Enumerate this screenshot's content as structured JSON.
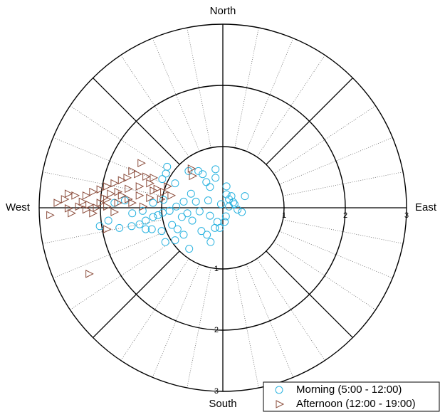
{
  "chart_data": {
    "type": "scatter",
    "coordinates": "polar",
    "compass": {
      "north": "North",
      "east": "East",
      "south": "South",
      "west": "West"
    },
    "rlim": [
      0,
      3
    ],
    "rticks": [
      1,
      2,
      3
    ],
    "legend": "bottom-right",
    "series": [
      {
        "name": "Morning (5:00 - 12:00)",
        "marker": "circle",
        "color": "#2bb3e0",
        "x": [
          -0.91,
          -0.93,
          -0.99,
          -0.78,
          -0.56,
          -0.4,
          -0.33,
          -0.12,
          -0.12,
          -0.27,
          -0.21,
          0.06,
          0.06,
          0.14,
          0.36,
          0.17,
          0.1,
          0.24,
          0.31,
          0.05,
          0.03,
          -0.09,
          -0.21,
          -0.38,
          -0.24,
          -0.44,
          -0.52,
          -0.64,
          -0.76,
          -0.87,
          -0.98,
          -1.06,
          -1.14,
          -1.26,
          -1.36,
          -1.49,
          -1.69,
          -1.87,
          -2.01,
          -1.77,
          -1.6,
          -1.48,
          -1.31,
          -1.14,
          -0.97,
          -0.83,
          -0.74,
          -0.64,
          -0.55,
          -0.78,
          -0.94,
          -1.0,
          -1.16,
          -1.26,
          -0.5,
          -0.35,
          -0.2,
          -0.26,
          -0.58,
          -0.67,
          -0.13,
          -0.05,
          0.1,
          0.19,
          -0.03
        ],
        "y": [
          0.67,
          0.56,
          0.47,
          0.4,
          0.6,
          0.6,
          0.55,
          0.63,
          0.49,
          0.42,
          0.34,
          0.35,
          0.22,
          0.19,
          0.19,
          0.09,
          0.02,
          -0.03,
          -0.07,
          -0.14,
          -0.23,
          -0.23,
          -0.13,
          -0.06,
          0.12,
          0.1,
          0.23,
          0.1,
          0.02,
          -0.05,
          -0.08,
          -0.12,
          -0.15,
          -0.21,
          -0.27,
          -0.3,
          -0.33,
          -0.21,
          -0.3,
          0.08,
          0.12,
          -0.09,
          -0.05,
          0.08,
          0.13,
          -0.28,
          -0.35,
          -0.44,
          -0.67,
          -0.53,
          -0.56,
          -0.38,
          -0.35,
          -0.35,
          -0.21,
          -0.38,
          -0.56,
          -0.44,
          -0.09,
          -0.15,
          -0.33,
          -0.33,
          0.14,
          0.06,
          0.06
        ]
      },
      {
        "name": "Afternoon (12:00 - 19:00)",
        "marker": "triangle",
        "color": "#8a4b3a",
        "x": [
          -0.52,
          -0.5,
          -1.34,
          -1.4,
          -1.49,
          -1.57,
          -1.66,
          -1.78,
          -1.9,
          -2.01,
          -2.13,
          -2.24,
          -2.42,
          -2.59,
          -2.71,
          -2.53,
          -2.36,
          -2.19,
          -2.01,
          -1.9,
          -1.72,
          -1.55,
          -1.37,
          -1.2,
          -1.08,
          -0.97,
          -0.85,
          -1.02,
          -1.2,
          -1.37,
          -1.55,
          -1.72,
          -1.9,
          -2.07,
          -2.24,
          -2.48,
          -2.83,
          -1.9,
          -2.19,
          -1.26,
          -1.14,
          -1.31,
          -1.49,
          -1.66,
          -1.84,
          -1.95,
          -2.3,
          -2.13,
          -1.78,
          -1.14,
          -0.91,
          -2.53
        ],
        "y": [
          0.64,
          0.52,
          0.73,
          0.55,
          0.6,
          0.49,
          0.45,
          0.4,
          0.35,
          0.3,
          0.26,
          0.2,
          0.2,
          0.14,
          0.08,
          -0.01,
          0.02,
          0.05,
          0.08,
          0.14,
          0.26,
          0.31,
          0.35,
          0.4,
          0.31,
          0.26,
          0.2,
          0.14,
          0.16,
          0.2,
          0.14,
          0.08,
          0.02,
          0.0,
          -0.03,
          -0.09,
          -0.12,
          -0.35,
          -1.08,
          0.51,
          0.49,
          0.02,
          0.08,
          0.2,
          0.23,
          0.16,
          0.1,
          -0.09,
          -0.07,
          0.28,
          0.35,
          0.23
        ]
      }
    ]
  }
}
